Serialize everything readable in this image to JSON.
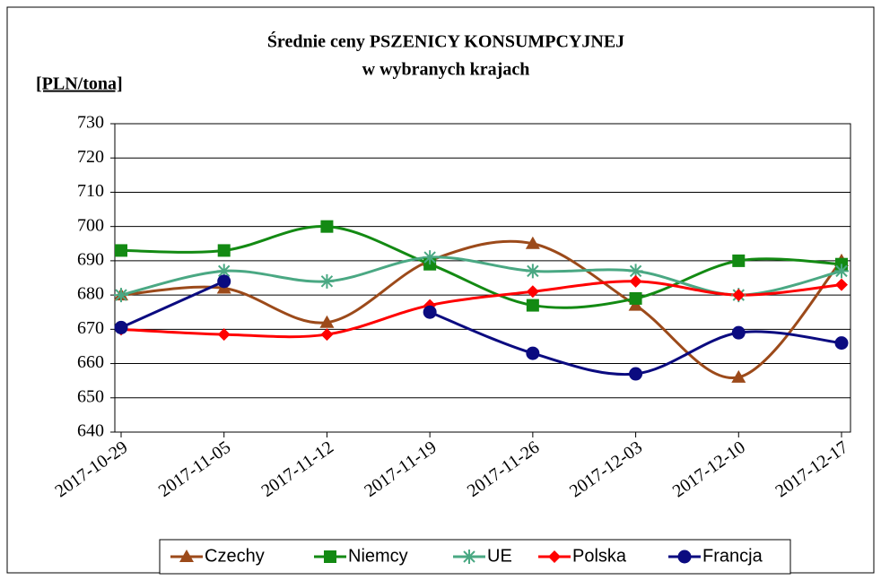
{
  "chart_data": {
    "type": "line",
    "title": [
      "Średnie ceny PSZENICY  KONSUMPCYJNEJ",
      "w wybranych krajach"
    ],
    "y_label": "[PLN/tona]",
    "x": [
      "2017-10-29",
      "2017-11-05",
      "2017-11-12",
      "2017-11-19",
      "2017-11-26",
      "2017-12-03",
      "2017-12-10",
      "2017-12-17"
    ],
    "ylim": [
      640,
      730
    ],
    "yticks": [
      640,
      650,
      660,
      670,
      680,
      690,
      700,
      710,
      720,
      730
    ],
    "grid": true,
    "smooth": true,
    "legend": "bottom",
    "series": [
      {
        "name": "Czechy",
        "color": "#9c4a1a",
        "marker": "triangle",
        "values": [
          680,
          682,
          672,
          690,
          695,
          677,
          656,
          690
        ]
      },
      {
        "name": "Niemcy",
        "color": "#138a13",
        "marker": "square",
        "values": [
          693,
          693,
          700,
          689,
          677,
          679,
          690,
          689
        ]
      },
      {
        "name": "UE",
        "color": "#4aa883",
        "marker": "star",
        "values": [
          680,
          687,
          684,
          691,
          687,
          687,
          680,
          687
        ]
      },
      {
        "name": "Polska",
        "color": "#ff0000",
        "marker": "diamond",
        "values": [
          670,
          668.5,
          668.5,
          677,
          681,
          684,
          680,
          683
        ]
      },
      {
        "name": "Francja",
        "color": "#0b0b80",
        "marker": "circle",
        "values": [
          670.5,
          684,
          null,
          675,
          663,
          657,
          669,
          666
        ]
      }
    ]
  }
}
